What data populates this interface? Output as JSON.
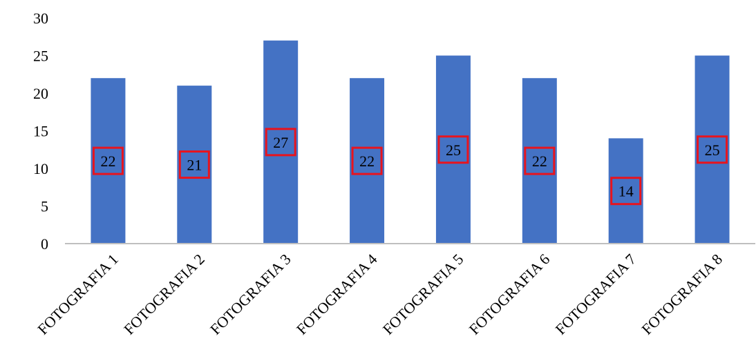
{
  "chart_data": {
    "type": "bar",
    "title": "",
    "xlabel": "",
    "ylabel": "",
    "categories": [
      "FOTOGRAFIA 1",
      "FOTOGRAFIA 2",
      "FOTOGRAFIA 3",
      "FOTOGRAFIA 4",
      "FOTOGRAFIA 5",
      "FOTOGRAFIA 6",
      "FOTOGRAFIA 7",
      "FOTOGRAFIA 8"
    ],
    "values": [
      22,
      21,
      27,
      22,
      25,
      22,
      14,
      25
    ],
    "data_labels": [
      "22",
      "21",
      "27",
      "22",
      "25",
      "22",
      "14",
      "25"
    ],
    "ylim": [
      0,
      30
    ],
    "yticks": [
      0,
      5,
      10,
      15,
      20,
      25,
      30
    ],
    "ytick_labels": [
      "0",
      "5",
      "10",
      "15",
      "20",
      "25",
      "30"
    ],
    "grid": false,
    "legend": "none",
    "colors": {
      "bar": "#4472C4",
      "label_box_border": "#E8141E",
      "axis": "#BFBFBF"
    }
  }
}
